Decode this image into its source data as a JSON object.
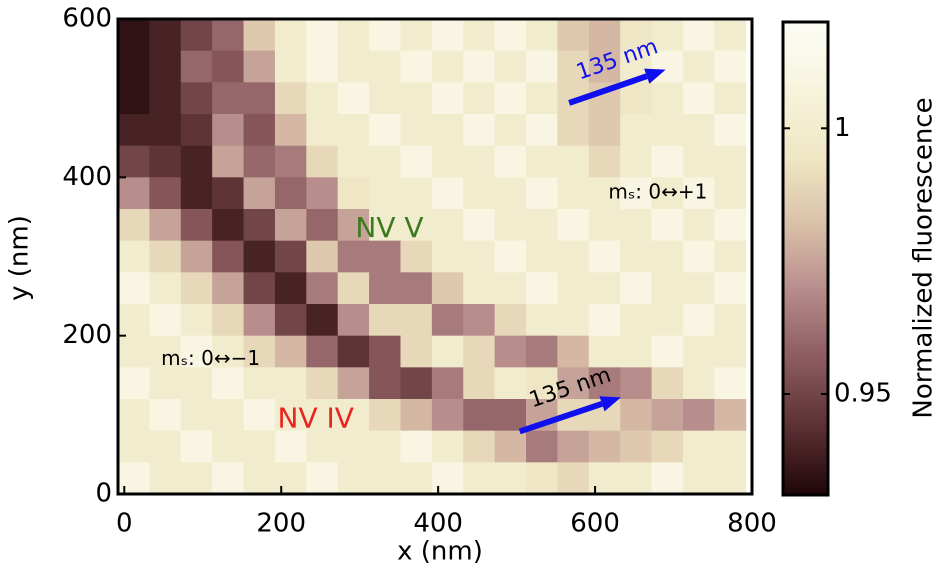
{
  "chart_data": {
    "type": "heatmap",
    "xlabel": "x (nm)",
    "ylabel": "y (nm)",
    "xlim": [
      -8,
      800
    ],
    "ylim": [
      0,
      600
    ],
    "xticks": [
      0,
      200,
      400,
      600,
      800
    ],
    "yticks": [
      0,
      200,
      400,
      600
    ],
    "x": [
      12,
      52,
      92,
      132,
      172,
      212,
      252,
      292,
      332,
      372,
      412,
      452,
      492,
      532,
      572,
      612,
      652,
      692,
      732,
      772
    ],
    "y": [
      580,
      540,
      500,
      460,
      420,
      380,
      340,
      300,
      260,
      220,
      180,
      140,
      100,
      60,
      20
    ],
    "z": [
      [
        0.935,
        0.94,
        0.95,
        0.96,
        0.985,
        1.0,
        1.01,
        1.0,
        1.01,
        1.0,
        1.01,
        1.0,
        1.01,
        1.0,
        0.985,
        0.98,
        0.995,
        1.0,
        1.01,
        1.0
      ],
      [
        0.935,
        0.94,
        0.96,
        0.955,
        0.975,
        1.0,
        1.01,
        1.0,
        1.0,
        1.01,
        1.0,
        1.01,
        1.0,
        1.01,
        0.99,
        0.98,
        1.0,
        1.01,
        1.0,
        1.01
      ],
      [
        0.935,
        0.94,
        0.95,
        0.96,
        0.96,
        0.99,
        1.0,
        1.01,
        1.0,
        1.0,
        1.01,
        1.0,
        1.01,
        1.0,
        0.99,
        0.985,
        0.995,
        1.0,
        1.01,
        1.0
      ],
      [
        0.94,
        0.94,
        0.945,
        0.97,
        0.955,
        0.98,
        1.0,
        1.0,
        1.01,
        1.0,
        1.0,
        1.01,
        1.0,
        1.01,
        0.99,
        0.985,
        1.0,
        1.0,
        1.0,
        1.01
      ],
      [
        0.95,
        0.945,
        0.94,
        0.975,
        0.96,
        0.965,
        0.99,
        1.0,
        1.0,
        1.01,
        1.0,
        1.0,
        1.01,
        1.0,
        1.0,
        0.99,
        1.0,
        1.01,
        1.0,
        1.0
      ],
      [
        0.97,
        0.955,
        0.94,
        0.945,
        0.975,
        0.96,
        0.97,
        0.995,
        1.0,
        1.0,
        1.01,
        1.0,
        1.0,
        1.01,
        1.0,
        1.0,
        1.01,
        1.0,
        1.01,
        1.0
      ],
      [
        0.99,
        0.975,
        0.955,
        0.94,
        0.95,
        0.975,
        0.96,
        0.975,
        1.0,
        1.0,
        1.0,
        1.01,
        1.0,
        1.0,
        1.01,
        1.0,
        1.0,
        1.01,
        1.0,
        1.01
      ],
      [
        1.0,
        0.99,
        0.975,
        0.955,
        0.94,
        0.95,
        0.985,
        0.965,
        0.965,
        0.99,
        1.0,
        1.0,
        1.01,
        1.0,
        1.0,
        1.01,
        1.0,
        1.0,
        1.01,
        1.0
      ],
      [
        1.01,
        1.0,
        0.99,
        0.975,
        0.95,
        0.94,
        0.965,
        0.99,
        0.965,
        0.965,
        0.985,
        1.0,
        1.0,
        1.01,
        1.0,
        1.0,
        1.01,
        1.0,
        1.0,
        1.01
      ],
      [
        1.0,
        1.01,
        1.0,
        0.99,
        0.97,
        0.95,
        0.94,
        0.97,
        0.99,
        0.99,
        0.965,
        0.97,
        0.99,
        1.0,
        1.0,
        1.01,
        1.0,
        1.0,
        1.01,
        1.0
      ],
      [
        1.0,
        1.0,
        1.01,
        1.0,
        0.99,
        0.98,
        0.96,
        0.945,
        0.955,
        0.99,
        1.0,
        0.99,
        0.97,
        0.965,
        0.98,
        1.0,
        1.0,
        1.01,
        1.0,
        1.0
      ],
      [
        1.01,
        1.0,
        1.0,
        1.01,
        1.0,
        1.0,
        0.99,
        0.975,
        0.955,
        0.95,
        0.965,
        0.99,
        1.0,
        0.995,
        0.975,
        0.965,
        0.97,
        0.99,
        1.0,
        1.01
      ],
      [
        1.0,
        1.01,
        1.0,
        1.0,
        1.01,
        1.0,
        1.0,
        1.0,
        0.99,
        0.98,
        0.97,
        0.96,
        0.96,
        0.975,
        0.99,
        0.99,
        0.98,
        0.975,
        0.97,
        0.98
      ],
      [
        1.0,
        1.0,
        1.01,
        1.0,
        1.0,
        1.01,
        1.0,
        1.0,
        1.0,
        1.01,
        1.0,
        0.99,
        0.98,
        0.965,
        0.975,
        0.98,
        0.985,
        0.99,
        1.0,
        1.0
      ],
      [
        1.01,
        1.0,
        1.0,
        1.01,
        1.0,
        1.0,
        1.01,
        1.0,
        1.0,
        1.0,
        1.01,
        1.0,
        1.0,
        0.995,
        0.99,
        1.0,
        1.0,
        1.01,
        1.0,
        1.0
      ]
    ],
    "colormap": [
      "#1e0508",
      "#5a3033",
      "#8a5a5e",
      "#b58a8a",
      "#d9c0a8",
      "#efe6c4",
      "#f7f4dc",
      "#fcfcf6"
    ],
    "colorbar": {
      "label": "Normalized fluorescence",
      "clim": [
        0.931,
        1.02
      ],
      "ticks": [
        0.95,
        1
      ]
    },
    "annotations": [
      {
        "text": "NV V",
        "x": 338,
        "y": 335,
        "color": "#3c7a1e"
      },
      {
        "text": "NV IV",
        "x": 244,
        "y": 94,
        "color": "#e8261e"
      },
      {
        "text": "mₛ: 0↔+1",
        "x": 680,
        "y": 380,
        "color": "#000000"
      },
      {
        "text": "mₛ: 0↔−1",
        "x": 110,
        "y": 170,
        "color": "#000000"
      }
    ],
    "arrows": [
      {
        "label": "135 nm",
        "from": [
          567,
          494
        ],
        "to": [
          690,
          536
        ],
        "color": "#1010ee"
      },
      {
        "label": "135 nm",
        "from": [
          504,
          79
        ],
        "to": [
          633,
          122
        ],
        "color": "#1010ee"
      }
    ]
  }
}
